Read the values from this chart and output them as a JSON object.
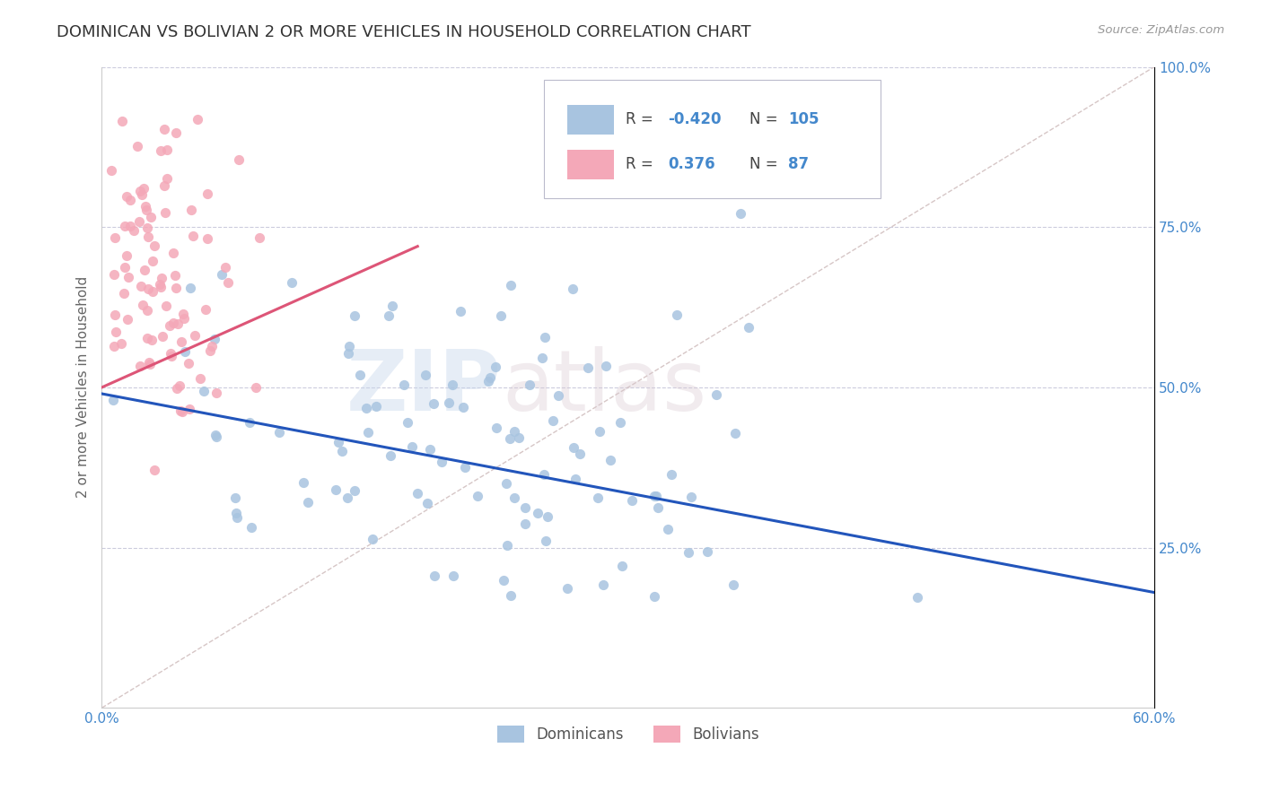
{
  "title": "DOMINICAN VS BOLIVIAN 2 OR MORE VEHICLES IN HOUSEHOLD CORRELATION CHART",
  "source": "Source: ZipAtlas.com",
  "ylabel": "2 or more Vehicles in Household",
  "xlim": [
    0.0,
    0.6
  ],
  "ylim": [
    0.0,
    1.0
  ],
  "blue_color": "#a8c4e0",
  "pink_color": "#f4a8b8",
  "blue_line_color": "#2255bb",
  "pink_line_color": "#dd5577",
  "diag_line_color": "#ccb8b8",
  "R_blue": -0.42,
  "N_blue": 105,
  "R_pink": 0.376,
  "N_pink": 87,
  "watermark": "ZIPatlas",
  "title_fontsize": 13,
  "label_color": "#4488cc",
  "background_color": "#ffffff",
  "seed_blue": 42,
  "seed_pink": 7
}
